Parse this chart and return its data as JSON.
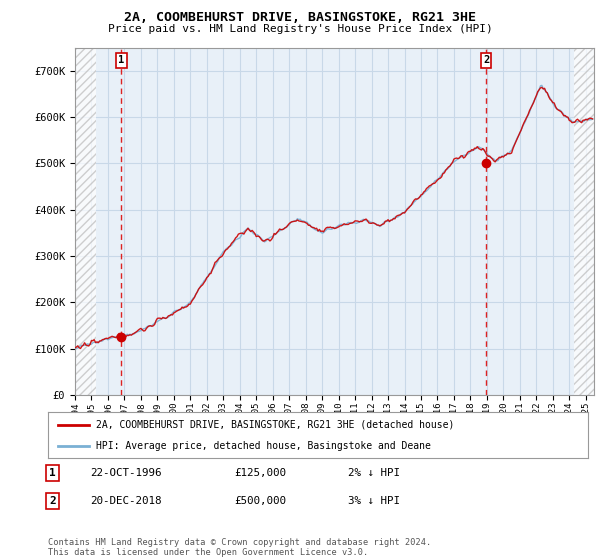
{
  "title": "2A, COOMBEHURST DRIVE, BASINGSTOKE, RG21 3HE",
  "subtitle": "Price paid vs. HM Land Registry's House Price Index (HPI)",
  "legend_label_red": "2A, COOMBEHURST DRIVE, BASINGSTOKE, RG21 3HE (detached house)",
  "legend_label_blue": "HPI: Average price, detached house, Basingstoke and Deane",
  "transaction1_label": "1",
  "transaction1_date": "22-OCT-1996",
  "transaction1_price": "£125,000",
  "transaction1_hpi": "2% ↓ HPI",
  "transaction2_label": "2",
  "transaction2_date": "20-DEC-2018",
  "transaction2_price": "£500,000",
  "transaction2_hpi": "3% ↓ HPI",
  "footer": "Contains HM Land Registry data © Crown copyright and database right 2024.\nThis data is licensed under the Open Government Licence v3.0.",
  "ylim": [
    0,
    750000
  ],
  "yticks": [
    0,
    100000,
    200000,
    300000,
    400000,
    500000,
    600000,
    700000
  ],
  "ytick_labels": [
    "£0",
    "£100K",
    "£200K",
    "£300K",
    "£400K",
    "£500K",
    "£600K",
    "£700K"
  ],
  "grid_color": "#c8d8e8",
  "plot_bg_color": "#e8f0f8",
  "red_color": "#cc0000",
  "blue_color": "#7ab0d4",
  "dashed_line_color": "#dd2222",
  "marker1_x": 1996.8,
  "marker1_y": 125000,
  "marker2_x": 2018.95,
  "marker2_y": 500000,
  "vline1_x": 1996.8,
  "vline2_x": 2018.95,
  "xmin": 1994.0,
  "xmax": 2025.5,
  "hatch_left_end": 1995.25,
  "hatch_right_start": 2024.3,
  "xticks": [
    1994,
    1995,
    1996,
    1997,
    1998,
    1999,
    2000,
    2001,
    2002,
    2003,
    2004,
    2005,
    2006,
    2007,
    2008,
    2009,
    2010,
    2011,
    2012,
    2013,
    2014,
    2015,
    2016,
    2017,
    2018,
    2019,
    2020,
    2021,
    2022,
    2023,
    2024,
    2025
  ]
}
